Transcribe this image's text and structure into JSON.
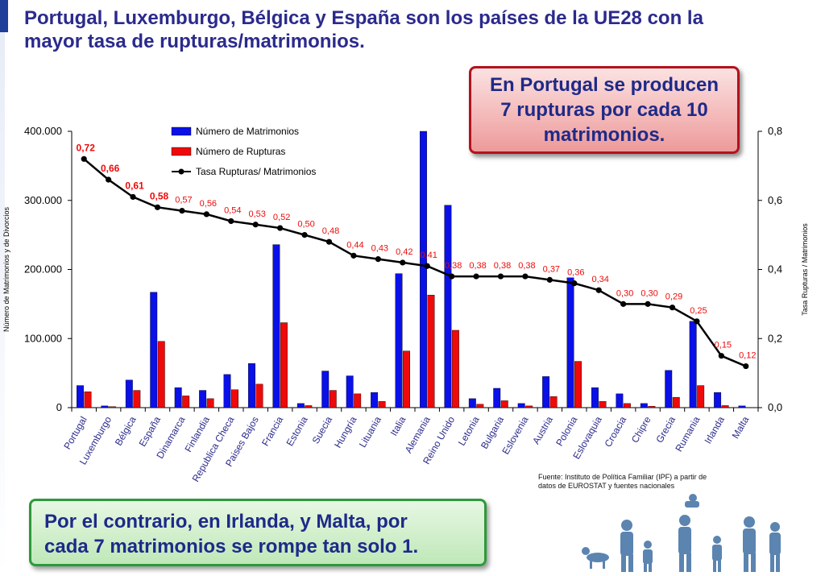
{
  "title": {
    "line1": "Portugal, Luxemburgo, Bélgica y España son los países de la UE28 con la",
    "line2": "mayor tasa de rupturas/matrimonios."
  },
  "callout_top": {
    "line1": "En Portugal se producen",
    "line2": "7 rupturas por cada 10",
    "line3": "matrimonios."
  },
  "callout_bottom": {
    "line1": "Por el contrario, en Irlanda, y Malta, por",
    "line2": "cada 7 matrimonios se rompe tan solo 1."
  },
  "source": {
    "line1": "Fuente: Instituto de Política Familiar (IPF) a partir de",
    "line2": "datos de EUROSTAT y fuentes nacionales"
  },
  "colors": {
    "marriages": "#0a10e8",
    "ruptures": "#ee0a0a",
    "rate_line": "#000000",
    "rate_label": "#ee0a0a"
  },
  "chart_data": {
    "type": "bar",
    "categories": [
      "Portugal",
      "Luxemburgo",
      "Bélgica",
      "España",
      "Dinamarca",
      "Finlandia",
      "Republica Checa",
      "Paises Bajos",
      "Francia",
      "Estonia",
      "Suecia",
      "Hungría",
      "Lituania",
      "Italia",
      "Alemania",
      "Reino Unido",
      "Letonia",
      "Bulgaria",
      "Eslovenia",
      "Austria",
      "Polonia",
      "Eslovaquia",
      "Croacia",
      "Chipre",
      "Grecia",
      "Rumania",
      "Irlanda",
      "Malta"
    ],
    "series": [
      {
        "name": "Número de Matrimonios",
        "kind": "bar",
        "axis": "left",
        "values": [
          32000,
          2500,
          40000,
          167000,
          29000,
          25000,
          48000,
          64000,
          236000,
          6000,
          53000,
          46000,
          22000,
          194000,
          400000,
          293000,
          13000,
          28000,
          6000,
          45000,
          188000,
          29000,
          20000,
          6000,
          54000,
          125000,
          22000,
          2500
        ]
      },
      {
        "name": "Número de Rupturas",
        "kind": "bar",
        "axis": "left",
        "values": [
          23000,
          1500,
          25000,
          96000,
          17000,
          13000,
          26000,
          34000,
          123000,
          3000,
          25000,
          20000,
          9000,
          82000,
          163000,
          112000,
          5000,
          10000,
          2500,
          16000,
          67000,
          9000,
          6000,
          2000,
          15000,
          32000,
          3000,
          300
        ]
      },
      {
        "name": "Tasa Rupturas/ Matrimonios",
        "kind": "line",
        "axis": "right",
        "values": [
          0.72,
          0.66,
          0.61,
          0.58,
          0.57,
          0.56,
          0.54,
          0.53,
          0.52,
          0.5,
          0.48,
          0.44,
          0.43,
          0.42,
          0.41,
          0.38,
          0.38,
          0.38,
          0.38,
          0.37,
          0.36,
          0.34,
          0.3,
          0.3,
          0.29,
          0.25,
          0.15,
          0.12
        ],
        "labels": [
          "0,72",
          "0,66",
          "0,61",
          "0,58",
          "0,57",
          "0,56",
          "0,54",
          "0,53",
          "0,52",
          "0,50",
          "0,48",
          "0,44",
          "0,43",
          "0,42",
          "0,41",
          "0,38",
          "0,38",
          "0,38",
          "0,38",
          "0,37",
          "0,36",
          "0,34",
          "0,30",
          "0,30",
          "0,29",
          "0,25",
          "0,15",
          "0,12"
        ]
      }
    ],
    "ylabel": "Número de Matrimonios y de Divorcios",
    "y2label": "Tasa Rupturas / Matrimonios",
    "ylim": [
      0,
      400000
    ],
    "y2lim": [
      0,
      0.8
    ],
    "yticks": [
      {
        "value": 0,
        "label": "0"
      },
      {
        "value": 100000,
        "label": "100.000"
      },
      {
        "value": 200000,
        "label": "200.000"
      },
      {
        "value": 300000,
        "label": "300.000"
      },
      {
        "value": 400000,
        "label": "400.000"
      }
    ],
    "y2ticks": [
      {
        "value": 0,
        "label": "0,0"
      },
      {
        "value": 0.2,
        "label": "0,2"
      },
      {
        "value": 0.4,
        "label": "0,4"
      },
      {
        "value": 0.6,
        "label": "0,6"
      },
      {
        "value": 0.8,
        "label": "0,8"
      }
    ],
    "legend_position": "top-left",
    "grid": false
  }
}
